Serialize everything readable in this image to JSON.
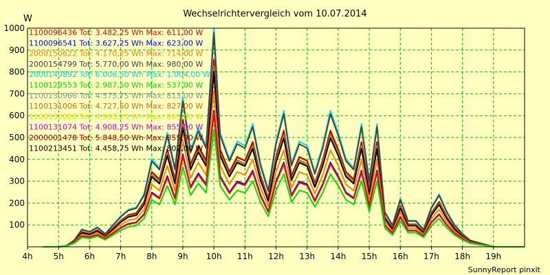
{
  "chart_data": {
    "type": "line",
    "title": "Wechselrichtervergleich vom 10.07.2014",
    "ylabel": "W",
    "xlabel": "",
    "footer": "SunnyReport pinxit",
    "ylim": [
      0,
      1000
    ],
    "xlim": [
      4,
      20
    ],
    "yticks": [
      100,
      200,
      300,
      400,
      500,
      600,
      700,
      800,
      900,
      1000
    ],
    "xticks": [
      {
        "v": 4,
        "label": "4h"
      },
      {
        "v": 5,
        "label": "5h"
      },
      {
        "v": 6,
        "label": "6h"
      },
      {
        "v": 7,
        "label": "7h"
      },
      {
        "v": 8,
        "label": "8h"
      },
      {
        "v": 9,
        "label": "9h"
      },
      {
        "v": 10,
        "label": "10h"
      },
      {
        "v": 11,
        "label": "11h"
      },
      {
        "v": 12,
        "label": "12h"
      },
      {
        "v": 13,
        "label": "13h"
      },
      {
        "v": 14,
        "label": "14h"
      },
      {
        "v": 15,
        "label": "15h"
      },
      {
        "v": 16,
        "label": "16h"
      },
      {
        "v": 17,
        "label": "17h"
      },
      {
        "v": 18,
        "label": "18h"
      },
      {
        "v": 19,
        "label": "19h"
      }
    ],
    "grid": true,
    "x": [
      4.5,
      4.75,
      5,
      5.25,
      5.5,
      5.75,
      6,
      6.25,
      6.5,
      6.75,
      7,
      7.25,
      7.5,
      7.75,
      8,
      8.25,
      8.5,
      8.75,
      9,
      9.25,
      9.5,
      9.75,
      10,
      10.2,
      10.5,
      10.75,
      11,
      11.25,
      11.5,
      11.75,
      12,
      12.25,
      12.5,
      12.75,
      13,
      13.25,
      13.5,
      13.75,
      14,
      14.25,
      14.5,
      14.75,
      15,
      15.25,
      15.5,
      15.75,
      16,
      16.25,
      16.5,
      16.75,
      17,
      17.25,
      17.5,
      17.75,
      18,
      18.25,
      18.5,
      18.75,
      19,
      19.25,
      19.5,
      19.75,
      20
    ],
    "series": [
      {
        "name": "1100096436",
        "legend": "1100096436 Tot: 3.482,25 Wh Max: 611,00 W",
        "color": "#ff0000",
        "max": 611
      },
      {
        "name": "1100096541",
        "legend": "1100096541 Tot: 3.627,25 Wh Max: 623,00 W",
        "color": "#0000ff",
        "max": 623
      },
      {
        "name": "2000150622",
        "legend": "2000150622 Tot: 4.170,25 Wh Max: 714,00 W",
        "color": "#ff8000",
        "max": 714
      },
      {
        "name": "2000154799",
        "legend": "2000154799 Tot: 5.770,00 Wh Max: 980,00 W",
        "color": "#404040",
        "max": 980
      },
      {
        "name": "2000149892",
        "legend": "2000149892 Tot: 6.006,50 Wh Max: 1.004,00 W",
        "color": "#00e0e0",
        "max": 1004
      },
      {
        "name": "1100129553",
        "legend": "1100129553 Tot: 2.987,50 Wh Max: 537,00 W",
        "color": "#00e000",
        "max": 537
      },
      {
        "name": "1100130966",
        "legend": "1100130966 Tot: 4.575,75 Wh Max: 813,00 W",
        "color": "#909090",
        "max": 813
      },
      {
        "name": "1100131006",
        "legend": "1100131006 Tot: 4.727,50 Wh Max: 827,00 W",
        "color": "#d07000",
        "max": 827
      },
      {
        "name": "1100131028",
        "legend": "1100131028 Tot: 4.963,25 Wh Max: 863,00 W",
        "color": "#e0e000",
        "max": 863
      },
      {
        "name": "1100131074",
        "legend": "1100131074 Tot: 4.908,25 Wh Max: 855,00 W",
        "color": "#d000d0",
        "max": 855
      },
      {
        "name": "2000001478",
        "legend": "2000001478 Tot: 5.848,50 Wh Max: 855,00 W",
        "color": "#b00000",
        "max": 855
      },
      {
        "name": "1100213451",
        "legend": "1100213451 Tot: 4.458,75 Wh Max: 802,00 W",
        "color": "#000000",
        "max": 802
      }
    ],
    "profile": [
      0,
      0,
      0,
      5,
      30,
      80,
      70,
      90,
      60,
      100,
      140,
      170,
      180,
      240,
      400,
      360,
      520,
      360,
      680,
      440,
      540,
      460,
      1000,
      520,
      400,
      480,
      460,
      560,
      380,
      260,
      480,
      620,
      380,
      480,
      460,
      340,
      460,
      620,
      520,
      400,
      360,
      560,
      300,
      560,
      160,
      100,
      220,
      120,
      120,
      80,
      180,
      240,
      160,
      100,
      60,
      30,
      20,
      10,
      0,
      0,
      0,
      0,
      0
    ]
  }
}
